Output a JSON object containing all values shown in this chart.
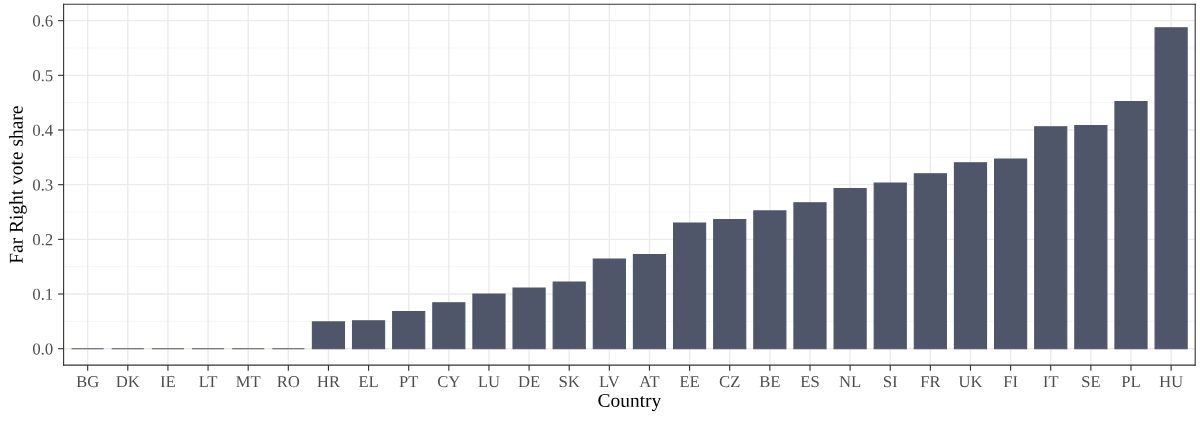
{
  "chart_data": {
    "type": "bar",
    "xlabel": "Country",
    "ylabel": "Far Right vote share",
    "categories": [
      "BG",
      "DK",
      "IE",
      "LT",
      "MT",
      "RO",
      "HR",
      "EL",
      "PT",
      "CY",
      "LU",
      "DE",
      "SK",
      "LV",
      "AT",
      "EE",
      "CZ",
      "BE",
      "ES",
      "NL",
      "SI",
      "FR",
      "UK",
      "FI",
      "IT",
      "SE",
      "PL",
      "HU"
    ],
    "values": [
      0,
      0,
      0,
      0,
      0,
      0,
      0.049,
      0.051,
      0.068,
      0.084,
      0.1,
      0.111,
      0.122,
      0.164,
      0.172,
      0.23,
      0.236,
      0.252,
      0.267,
      0.293,
      0.303,
      0.32,
      0.34,
      0.347,
      0.406,
      0.408,
      0.452,
      0.587
    ],
    "color": "#50566a",
    "ylim": [
      -0.03,
      0.63
    ],
    "yticks": [
      {
        "value": 0,
        "label": "0.0"
      },
      {
        "value": 0.1,
        "label": "0.1"
      },
      {
        "value": 0.2,
        "label": "0.2"
      },
      {
        "value": 0.3,
        "label": "0.3"
      },
      {
        "value": 0.4,
        "label": "0.4"
      },
      {
        "value": 0.5,
        "label": "0.5"
      },
      {
        "value": 0.6,
        "label": "0.6"
      }
    ],
    "grid": true
  }
}
